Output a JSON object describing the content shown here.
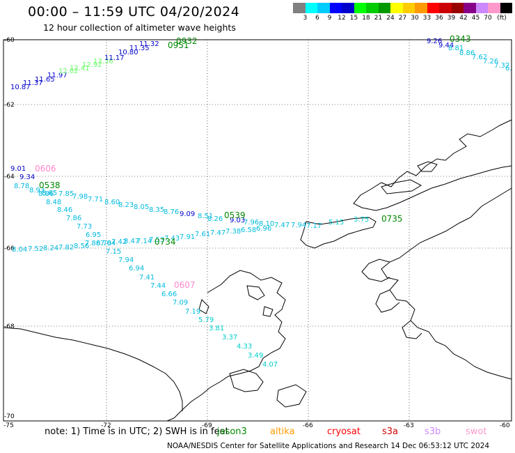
{
  "title": "00:00 – 11:59 UTC 04/20/2024",
  "subtitle": "12 hour collection of altimeter wave heights",
  "legend": {
    "unit": "(ft)",
    "colors": [
      "#808080",
      "#00ffff",
      "#00ccff",
      "#0000ff",
      "#0000cc",
      "#00ff00",
      "#00cc00",
      "#009900",
      "#ffff00",
      "#ffcc00",
      "#ff9900",
      "#ff0000",
      "#cc0000",
      "#990000",
      "#880088",
      "#cc88ff",
      "#ff99cc",
      "#000000"
    ],
    "labels": [
      "3",
      "6",
      "9",
      "12",
      "15",
      "18",
      "21",
      "24",
      "27",
      "30",
      "33",
      "36",
      "39",
      "42",
      "45",
      "70"
    ]
  },
  "axes": {
    "lon_labels": [
      "-75",
      "-72",
      "-69",
      "-66",
      "-63",
      "-60"
    ],
    "lat_labels": [
      "-60",
      "-62",
      "-64",
      "-66",
      "-68",
      "-70"
    ]
  },
  "passes": [
    {
      "label": "0932",
      "color": "#008800"
    },
    {
      "label": "0951",
      "color": "#008800"
    },
    {
      "label": "0343",
      "color": "#008800"
    },
    {
      "label": "0606",
      "color": "#ff88cc"
    },
    {
      "label": "0538",
      "color": "#008800"
    },
    {
      "label": "0539",
      "color": "#008800"
    },
    {
      "label": "0735",
      "color": "#008800"
    },
    {
      "label": "0734",
      "color": "#008800"
    },
    {
      "label": "0607",
      "color": "#ff88cc"
    }
  ],
  "values": {
    "a": [
      "10.87",
      "11.37",
      "11.65",
      "11.97",
      "12.02",
      "12.41",
      "12.92",
      "13.36",
      "11.17",
      "10.80",
      "11.35",
      "11.32"
    ],
    "b": [
      "9.26",
      "9.44",
      "8.81",
      "8.86",
      "7.62",
      "7.26",
      "7.32",
      "6."
    ],
    "c": [
      "9.01",
      "9.34",
      "8.78",
      "8.93",
      "8.86",
      "8.48",
      "8.46",
      "7.86",
      "7.73",
      "6.95",
      "6.78",
      "7.15",
      "7.94",
      "6.94",
      "7.41",
      "7.44",
      "6.66",
      "7.09",
      "7.19",
      "5.79",
      "3.81",
      "3.37",
      "4.33",
      "3.49",
      "4.07"
    ],
    "d": [
      "8.65",
      "7.85",
      "7.98",
      "7.71",
      "8.60",
      "8.23",
      "8.05",
      "8.35",
      "8.76",
      "9.09",
      "8.51",
      "8.26",
      "9.03",
      "7.96",
      "8.10",
      "7.47",
      "7.94",
      "7.17",
      "5.15",
      "3.75"
    ],
    "e": [
      "8.04",
      "7.52",
      "8.24",
      "7.82",
      "8.56",
      "7.88",
      "7.04",
      "7.42",
      "8.47",
      "7.14",
      "7.53",
      "7.43",
      "7.91",
      "7.61",
      "7.47",
      "7.38",
      "6.58",
      "6.96"
    ]
  },
  "footnote": "note: 1) Time is in UTC; 2) SWH is in feet",
  "satellites": [
    {
      "name": "jason3",
      "color": "#008800"
    },
    {
      "name": "altika",
      "color": "#ff9900"
    },
    {
      "name": "cryosat",
      "color": "#ff0000"
    },
    {
      "name": "s3a",
      "color": "#cc0000"
    },
    {
      "name": "s3b",
      "color": "#cc88ff"
    },
    {
      "name": "swot",
      "color": "#ff99cc"
    }
  ],
  "credit": "NOAA/NESDIS Center for Satellite Applications and Research   14 Dec 06:53:12 UTC 2024"
}
